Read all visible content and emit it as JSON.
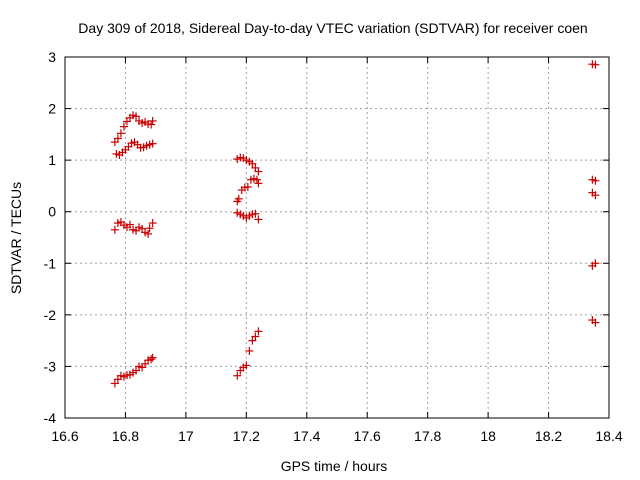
{
  "chart_data": {
    "type": "scatter",
    "title": "Day 309 of 2018, Sidereal Day-to-day VTEC variation (SDTVAR) for receiver coen",
    "xlabel": "GPS time / hours",
    "ylabel": "SDTVAR / TECUs",
    "xlim": [
      16.6,
      18.4
    ],
    "ylim": [
      -4,
      3
    ],
    "xticks": [
      "16.6",
      "16.8",
      "17",
      "17.2",
      "17.4",
      "17.6",
      "17.8",
      "18",
      "18.2",
      "18.4"
    ],
    "yticks": [
      "-4",
      "-3",
      "-2",
      "-1",
      "0",
      "1",
      "2",
      "3"
    ],
    "grid": true,
    "marker": "+",
    "marker_color": "#cc0000",
    "series": [
      {
        "points": [
          [
            16.765,
            1.35
          ],
          [
            16.775,
            1.42
          ],
          [
            16.785,
            1.52
          ],
          [
            16.795,
            1.65
          ],
          [
            16.805,
            1.75
          ],
          [
            16.815,
            1.82
          ],
          [
            16.825,
            1.87
          ],
          [
            16.835,
            1.85
          ],
          [
            16.845,
            1.76
          ],
          [
            16.855,
            1.72
          ],
          [
            16.865,
            1.74
          ],
          [
            16.875,
            1.7
          ],
          [
            16.885,
            1.69
          ],
          [
            16.89,
            1.76
          ],
          [
            16.77,
            1.12
          ],
          [
            16.78,
            1.1
          ],
          [
            16.79,
            1.15
          ],
          [
            16.8,
            1.2
          ],
          [
            16.81,
            1.26
          ],
          [
            16.82,
            1.33
          ],
          [
            16.83,
            1.35
          ],
          [
            16.84,
            1.3
          ],
          [
            16.85,
            1.24
          ],
          [
            16.86,
            1.25
          ],
          [
            16.87,
            1.28
          ],
          [
            16.88,
            1.3
          ],
          [
            16.89,
            1.32
          ],
          [
            16.765,
            -0.35
          ],
          [
            16.775,
            -0.22
          ],
          [
            16.785,
            -0.2
          ],
          [
            16.795,
            -0.26
          ],
          [
            16.805,
            -0.3
          ],
          [
            16.815,
            -0.25
          ],
          [
            16.825,
            -0.35
          ],
          [
            16.835,
            -0.37
          ],
          [
            16.845,
            -0.3
          ],
          [
            16.855,
            -0.33
          ],
          [
            16.865,
            -0.4
          ],
          [
            16.875,
            -0.43
          ],
          [
            16.88,
            -0.32
          ],
          [
            16.89,
            -0.22
          ],
          [
            16.765,
            -3.33
          ],
          [
            16.775,
            -3.25
          ],
          [
            16.785,
            -3.18
          ],
          [
            16.795,
            -3.2
          ],
          [
            16.805,
            -3.17
          ],
          [
            16.815,
            -3.16
          ],
          [
            16.825,
            -3.12
          ],
          [
            16.835,
            -3.08
          ],
          [
            16.845,
            -3.0
          ],
          [
            16.855,
            -3.02
          ],
          [
            16.865,
            -2.95
          ],
          [
            16.875,
            -2.88
          ],
          [
            16.885,
            -2.86
          ],
          [
            16.89,
            -2.83
          ],
          [
            17.17,
            1.02
          ],
          [
            17.18,
            1.05
          ],
          [
            17.19,
            1.04
          ],
          [
            17.2,
            1.0
          ],
          [
            17.21,
            0.97
          ],
          [
            17.22,
            0.93
          ],
          [
            17.23,
            0.85
          ],
          [
            17.24,
            0.78
          ],
          [
            17.17,
            0.2
          ],
          [
            17.175,
            0.25
          ],
          [
            17.185,
            0.42
          ],
          [
            17.195,
            0.47
          ],
          [
            17.205,
            0.48
          ],
          [
            17.215,
            0.62
          ],
          [
            17.225,
            0.64
          ],
          [
            17.235,
            0.62
          ],
          [
            17.24,
            0.55
          ],
          [
            17.17,
            -0.02
          ],
          [
            17.18,
            -0.05
          ],
          [
            17.19,
            -0.08
          ],
          [
            17.2,
            -0.12
          ],
          [
            17.21,
            -0.08
          ],
          [
            17.22,
            -0.05
          ],
          [
            17.23,
            -0.04
          ],
          [
            17.24,
            -0.15
          ],
          [
            17.17,
            -3.18
          ],
          [
            17.18,
            -3.08
          ],
          [
            17.19,
            -3.02
          ],
          [
            17.2,
            -2.98
          ],
          [
            17.21,
            -2.7
          ],
          [
            17.22,
            -2.5
          ],
          [
            17.23,
            -2.42
          ],
          [
            17.24,
            -2.32
          ],
          [
            18.345,
            2.86
          ],
          [
            18.355,
            2.85
          ],
          [
            18.345,
            0.62
          ],
          [
            18.355,
            0.6
          ],
          [
            18.345,
            0.37
          ],
          [
            18.355,
            0.32
          ],
          [
            18.345,
            -1.05
          ],
          [
            18.355,
            -1.0
          ],
          [
            18.345,
            -2.1
          ],
          [
            18.355,
            -2.15
          ]
        ]
      }
    ]
  }
}
